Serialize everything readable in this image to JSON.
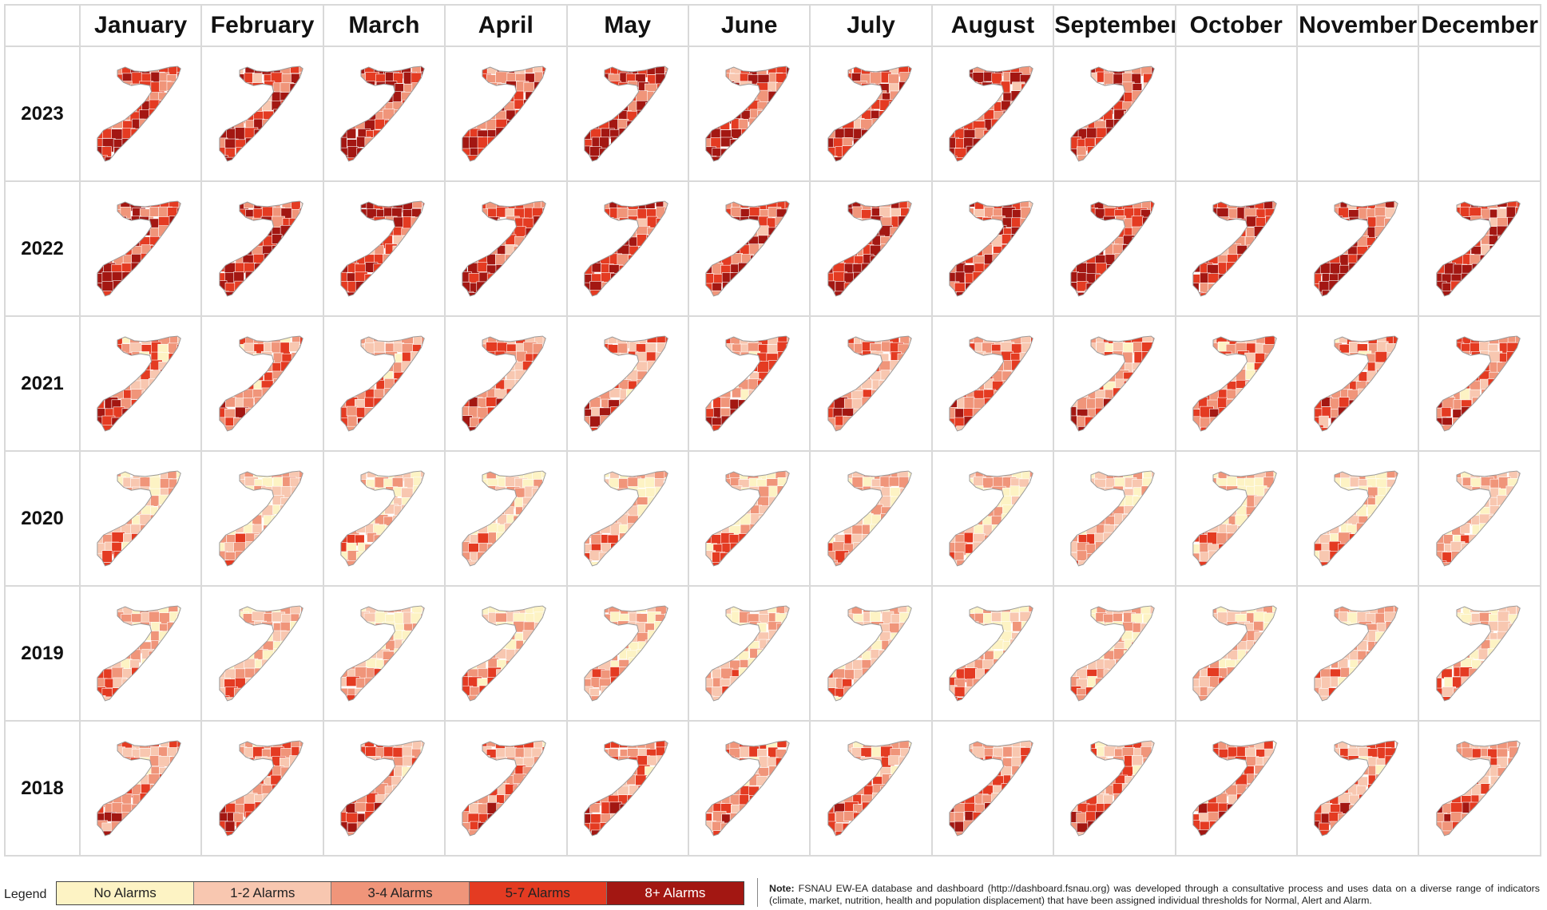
{
  "months": [
    "January",
    "February",
    "March",
    "April",
    "May",
    "June",
    "July",
    "August",
    "September",
    "October",
    "November",
    "December"
  ],
  "years": [
    "2023",
    "2022",
    "2021",
    "2020",
    "2019",
    "2018"
  ],
  "available_months": {
    "2023": 9,
    "2022": 12,
    "2021": 12,
    "2020": 12,
    "2019": 12,
    "2018": 12
  },
  "severity_by_year": {
    "2023": 4,
    "2022": 4,
    "2021": 3,
    "2020": 2,
    "2019": 2,
    "2018": 3
  },
  "legend": {
    "title": "Legend",
    "items": [
      {
        "label": "No Alarms",
        "color": "#fdf3c4"
      },
      {
        "label": "1-2 Alarms",
        "color": "#f8c7b0"
      },
      {
        "label": "3-4 Alarms",
        "color": "#f0957a"
      },
      {
        "label": "5-7 Alarms",
        "color": "#e43b22"
      },
      {
        "label": "8+ Alarms",
        "color": "#a31712"
      }
    ]
  },
  "note": {
    "label": "Note:",
    "text": "FSNAU EW-EA database and dashboard (http://dashboard.fsnau.org) was developed through a consultative process and uses data on a diverse range of indicators (climate, market, nutrition, health and population displacement) that have been assigned individual thresholds for Normal, Alert and Alarm."
  }
}
